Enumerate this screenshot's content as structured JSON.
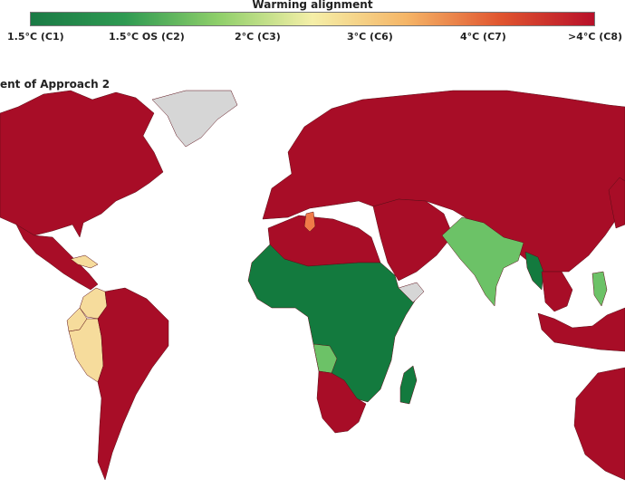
{
  "legend": {
    "title": "Warming alignment",
    "ticks": [
      "1.5°C (C1)",
      "1.5°C OS (C2)",
      "2°C (C3)",
      "3°C (C6)",
      "4°C (C7)",
      ">4°C (C8)"
    ],
    "gradient": [
      "#1a7a45",
      "#2f9a52",
      "#8fcf6a",
      "#f5efa8",
      "#f5b567",
      "#e0552f",
      "#b8102a"
    ]
  },
  "panel_title": "ent of Approach 2",
  "colors": {
    "c1": "#137a3e",
    "c2": "#6cc267",
    "c3": "#f6dc9c",
    "c6": "#f07b48",
    "c8": "#a80d27",
    "no_data": "#d6d6d6"
  },
  "regions": [
    {
      "name": "North America",
      "class": "c8"
    },
    {
      "name": "Greenland",
      "class": "no_data"
    },
    {
      "name": "Central America",
      "class": "c8"
    },
    {
      "name": "Cuba",
      "class": "c3"
    },
    {
      "name": "Colombia",
      "class": "c3"
    },
    {
      "name": "Ecuador",
      "class": "c3"
    },
    {
      "name": "Peru",
      "class": "c3"
    },
    {
      "name": "South America",
      "class": "c8"
    },
    {
      "name": "Europe and Russia",
      "class": "c8"
    },
    {
      "name": "North Africa",
      "class": "c8"
    },
    {
      "name": "Tunisia",
      "class": "c6"
    },
    {
      "name": "Sub-Saharan Africa",
      "class": "c1"
    },
    {
      "name": "Angola",
      "class": "c2"
    },
    {
      "name": "Southern Africa",
      "class": "c8"
    },
    {
      "name": "Madagascar",
      "class": "c1"
    },
    {
      "name": "Middle East",
      "class": "c8"
    },
    {
      "name": "Somalia",
      "class": "no_data"
    },
    {
      "name": "India",
      "class": "c2"
    },
    {
      "name": "Myanmar",
      "class": "c1"
    },
    {
      "name": "Southeast Asia",
      "class": "c8"
    },
    {
      "name": "Philippines",
      "class": "c2"
    },
    {
      "name": "Indonesia",
      "class": "c8"
    },
    {
      "name": "Australia",
      "class": "c8"
    },
    {
      "name": "Japan",
      "class": "c8"
    }
  ]
}
